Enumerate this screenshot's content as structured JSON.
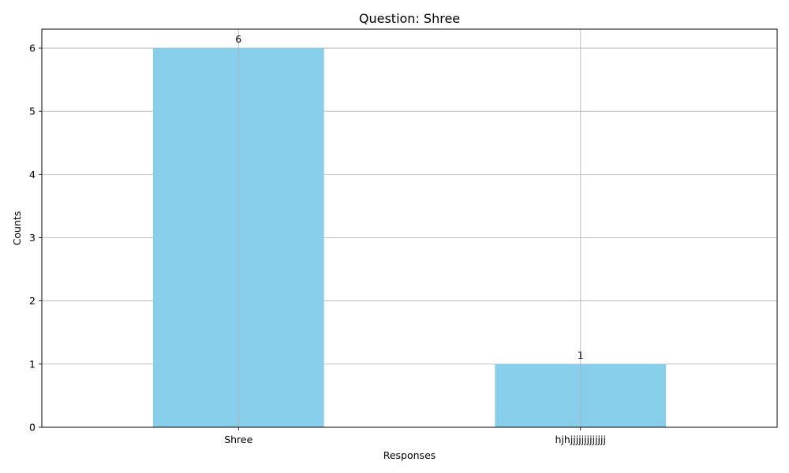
{
  "chart_data": {
    "type": "bar",
    "title": "Question: Shree",
    "xlabel": "Responses",
    "ylabel": "Counts",
    "categories": [
      "Shree",
      "hjhjjjjjjjjjjjjj"
    ],
    "values": [
      6,
      1
    ],
    "data_labels": [
      "6",
      "1"
    ],
    "ylim": [
      0,
      6.3
    ],
    "yticks": [
      0,
      1,
      2,
      3,
      4,
      5,
      6
    ],
    "grid": true,
    "bar_color": "#87CEEB",
    "grid_color": "#b0b0b0"
  }
}
